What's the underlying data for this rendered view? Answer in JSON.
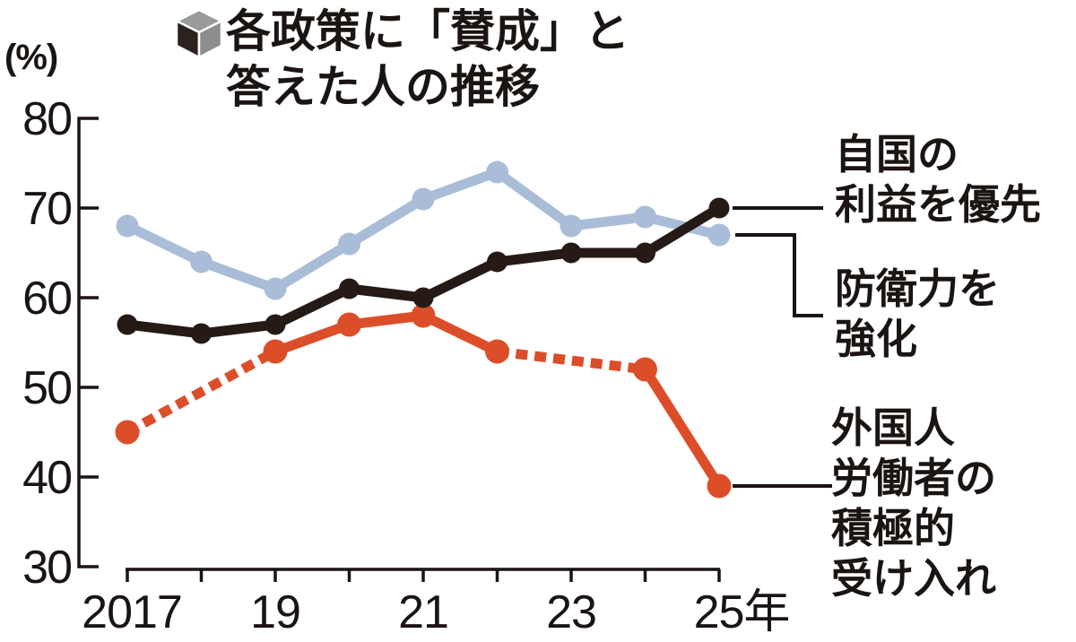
{
  "header": {
    "title_lines": [
      "各政策に「賛成」と",
      "答えた人の推移"
    ],
    "icon": "cube-icon"
  },
  "colors": {
    "ink": "#1a1412",
    "national_interest": "#251a15",
    "defense": "#a9bdd8",
    "foreign_workers": "#dc4e29",
    "cube_top": "#9a9a9a",
    "cube_left": "#2b211d",
    "cube_right": "#8d8d8d"
  },
  "chart_data": {
    "type": "line",
    "title": "各政策に「賛成」と答えた人の推移",
    "y_axis": {
      "unit": "(%)",
      "ticks": [
        80,
        70,
        60,
        50,
        40,
        30
      ],
      "ylim": [
        30,
        80
      ]
    },
    "x_axis": {
      "years": [
        2017,
        2018,
        2019,
        2020,
        2021,
        2022,
        2023,
        2024,
        2025
      ],
      "tick_labels": [
        {
          "label": "2017",
          "year": 2017
        },
        {
          "label": "19",
          "year": 2019
        },
        {
          "label": "21",
          "year": 2021
        },
        {
          "label": "23",
          "year": 2023
        },
        {
          "label": "25年",
          "year": 2025
        }
      ]
    },
    "grid": false,
    "legend_position": "right",
    "series": [
      {
        "key": "defense",
        "name": "防衛力を強化",
        "label_lines": [
          "防衛力を",
          "強化"
        ],
        "color": "#a9bdd8",
        "style": "solid",
        "values": [
          68,
          64,
          61,
          66,
          71,
          74,
          68,
          69,
          67
        ],
        "marker_years": [
          2017,
          2018,
          2019,
          2020,
          2021,
          2022,
          2023,
          2024,
          2025
        ]
      },
      {
        "key": "foreign-workers",
        "name": "外国人労働者の積極的受け入れ",
        "label_lines": [
          "外国人",
          "労働者の",
          "積極的",
          "受け入れ"
        ],
        "color": "#dc4e29",
        "style": "partially-dashed",
        "dashed_segments": [
          [
            2017,
            2019
          ],
          [
            2022,
            2024
          ]
        ],
        "values": [
          45,
          null,
          54,
          57,
          58,
          54,
          null,
          52,
          39
        ],
        "marker_years": [
          2017,
          2019,
          2020,
          2021,
          2022,
          2024,
          2025
        ]
      },
      {
        "key": "national-interest",
        "name": "自国の利益を優先",
        "label_lines": [
          "自国の",
          "利益を優先"
        ],
        "color": "#251a15",
        "style": "solid",
        "values": [
          57,
          56,
          57,
          61,
          60,
          64,
          65,
          65,
          70
        ],
        "marker_years": [
          2017,
          2018,
          2019,
          2020,
          2021,
          2022,
          2023,
          2024,
          2025
        ]
      }
    ]
  }
}
